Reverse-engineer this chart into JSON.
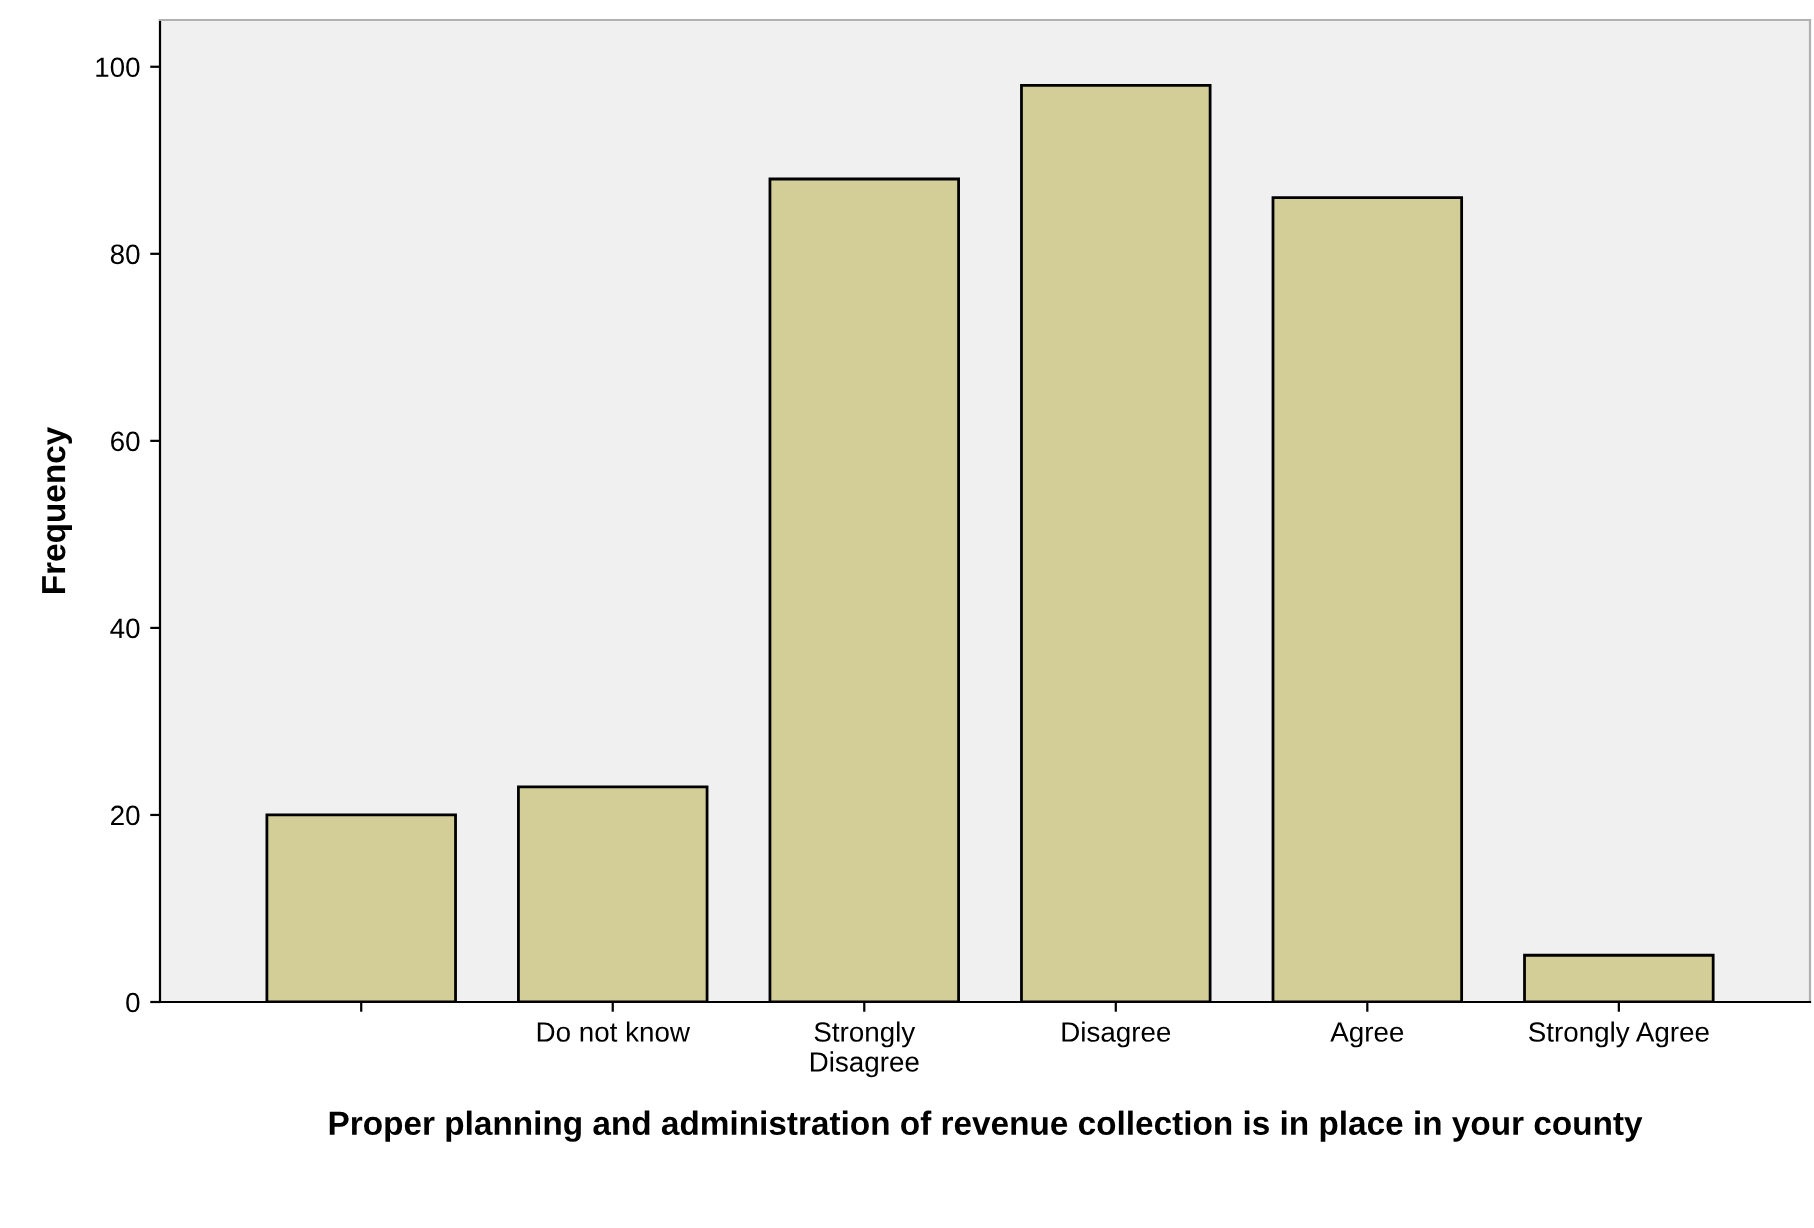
{
  "chart_data": {
    "type": "bar",
    "xlabel": "Proper planning and administration of revenue collection is in place in your county",
    "ylabel": "Frequency",
    "categories": [
      null,
      "Do not know",
      "Strongly\nDisagree",
      "Disagree",
      "Agree",
      "Strongly Agree"
    ],
    "values": [
      20,
      23,
      88,
      98,
      86,
      5
    ],
    "color": "#d3ce97",
    "ylim": [
      0,
      105
    ],
    "yticks": [
      0,
      20,
      40,
      60,
      80,
      100
    ],
    "grid": false,
    "legend": false
  }
}
